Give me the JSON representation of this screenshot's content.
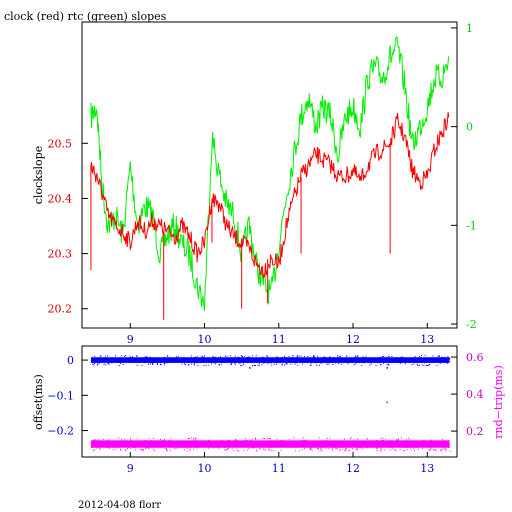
{
  "chart_data": [
    {
      "type": "line",
      "title": "clock (red) rtc (green) slopes",
      "xlabel": "",
      "ylabel": "clockslope",
      "xlim": [
        8.35,
        13.4
      ],
      "ylim": [
        20.165,
        20.72
      ],
      "y2lim": [
        -2.04,
        1.06
      ],
      "x_ticks": [
        "9",
        "10",
        "11",
        "12",
        "13"
      ],
      "y_ticks": [
        "20.2",
        "20.3",
        "20.4",
        "20.5"
      ],
      "y2_ticks": [
        "-2",
        "-1",
        "0",
        "1"
      ],
      "colors": {
        "clock": "#ff0000",
        "rtc": "#00ee00",
        "axis_left": "#cc0000",
        "axis_right": "#00cc00"
      },
      "series": [
        {
          "name": "clock",
          "axis": "left",
          "x": [
            8.47,
            8.55,
            8.62,
            8.7,
            8.8,
            8.9,
            9.0,
            9.1,
            9.2,
            9.3,
            9.4,
            9.5,
            9.6,
            9.7,
            9.8,
            9.9,
            10.0,
            10.1,
            10.2,
            10.3,
            10.4,
            10.5,
            10.6,
            10.7,
            10.8,
            10.9,
            11.0,
            11.1,
            11.2,
            11.3,
            11.4,
            11.5,
            11.6,
            11.7,
            11.8,
            11.9,
            12.0,
            12.1,
            12.2,
            12.3,
            12.4,
            12.5,
            12.6,
            12.7,
            12.8,
            12.9,
            13.0,
            13.1,
            13.2,
            13.3
          ],
          "values": [
            20.46,
            20.44,
            20.41,
            20.37,
            20.35,
            20.34,
            20.32,
            20.36,
            20.34,
            20.36,
            20.35,
            20.34,
            20.33,
            20.35,
            20.33,
            20.3,
            20.32,
            20.4,
            20.39,
            20.35,
            20.33,
            20.32,
            20.31,
            20.28,
            20.27,
            20.29,
            20.28,
            20.35,
            20.4,
            20.44,
            20.46,
            20.48,
            20.47,
            20.46,
            20.44,
            20.44,
            20.45,
            20.43,
            20.46,
            20.48,
            20.49,
            20.5,
            20.54,
            20.51,
            20.45,
            20.43,
            20.44,
            20.49,
            20.52,
            20.55
          ],
          "spikes": [
            [
              8.47,
              20.27
            ],
            [
              9.45,
              20.18
            ],
            [
              10.1,
              20.32
            ],
            [
              10.5,
              20.2
            ],
            [
              10.85,
              20.21
            ],
            [
              11.3,
              20.3
            ],
            [
              12.5,
              20.3
            ]
          ]
        },
        {
          "name": "rtc",
          "axis": "right",
          "x": [
            8.47,
            8.55,
            8.62,
            8.7,
            8.8,
            8.9,
            9.0,
            9.1,
            9.2,
            9.3,
            9.4,
            9.5,
            9.6,
            9.7,
            9.8,
            9.9,
            10.0,
            10.1,
            10.2,
            10.3,
            10.4,
            10.5,
            10.6,
            10.7,
            10.8,
            10.9,
            11.0,
            11.1,
            11.2,
            11.3,
            11.4,
            11.5,
            11.6,
            11.7,
            11.8,
            11.9,
            12.0,
            12.1,
            12.2,
            12.3,
            12.4,
            12.5,
            12.6,
            12.7,
            12.8,
            12.9,
            13.0,
            13.1,
            13.2,
            13.3
          ],
          "values": [
            0.1,
            0.2,
            -0.6,
            -1.0,
            -0.9,
            -1.1,
            -0.4,
            -1.0,
            -0.8,
            -0.9,
            -1.3,
            -1.1,
            -1.0,
            -1.2,
            -1.3,
            -1.6,
            -1.8,
            -0.1,
            -0.5,
            -0.8,
            -0.9,
            -1.3,
            -1.0,
            -1.4,
            -1.6,
            -1.7,
            -1.2,
            -0.7,
            -0.3,
            0.1,
            0.3,
            0.0,
            0.2,
            0.1,
            -0.3,
            0.1,
            0.2,
            0.0,
            0.5,
            0.6,
            0.5,
            0.7,
            0.8,
            0.4,
            -0.2,
            0.0,
            0.2,
            0.5,
            0.5,
            0.7
          ]
        }
      ]
    },
    {
      "type": "scatter",
      "title": "",
      "xlabel": "",
      "ylabel": "offset(ms)",
      "y2label": "rnd−trip(ms)",
      "xlim": [
        8.35,
        13.4
      ],
      "ylim": [
        -0.275,
        0.04
      ],
      "y2lim": [
        0.06,
        0.66
      ],
      "x_ticks": [
        "9",
        "10",
        "11",
        "12",
        "13"
      ],
      "y_ticks": [
        "0",
        "−0.1",
        "−0.2"
      ],
      "y2_ticks": [
        "0.2",
        "0.4",
        "0.6"
      ],
      "colors": {
        "offset": "#0000ff",
        "rndtrip": "#ff00ff",
        "axis_bottom": "#0000cc",
        "axis_right": "#cc00cc"
      },
      "series": [
        {
          "name": "offset",
          "axis": "left",
          "x_range": [
            8.47,
            13.3
          ],
          "level": 0.0,
          "spread": 0.008,
          "outliers": [
            [
              10.6,
              -0.02
            ],
            [
              12.45,
              -0.02
            ],
            [
              9.4,
              -0.01
            ]
          ]
        },
        {
          "name": "rnd-trip",
          "axis": "right",
          "x_range": [
            8.47,
            13.3
          ],
          "level": 0.13,
          "spread": 0.02,
          "outliers": [
            [
              12.45,
              0.36
            ],
            [
              9.5,
              0.14
            ],
            [
              11.3,
              0.14
            ]
          ]
        }
      ]
    }
  ],
  "footer": {
    "date": "2012-04-08 florr"
  }
}
